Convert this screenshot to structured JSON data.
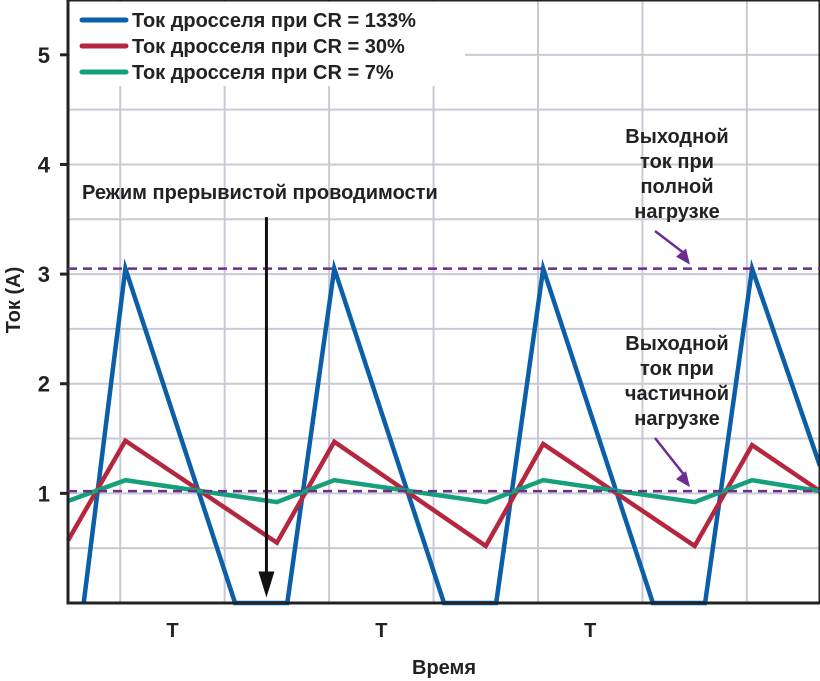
{
  "chart_data": {
    "type": "line",
    "xlabel": "Время",
    "ylabel": "Ток (А)",
    "ylim": [
      0,
      5.5
    ],
    "xlim": [
      0,
      7.2
    ],
    "yticks": [
      1,
      2,
      3,
      4,
      5
    ],
    "xticks": [
      {
        "x": 1.0,
        "label": "T"
      },
      {
        "x": 3.0,
        "label": "T"
      },
      {
        "x": 5.0,
        "label": "T"
      }
    ],
    "grid": true,
    "legend": "top-left",
    "series": [
      {
        "name": "Ток дросселя при CR = 133%",
        "color": "#0a5fa8",
        "x": [
          0.15,
          0.55,
          1.6,
          2.1,
          2.55,
          3.6,
          4.1,
          4.55,
          5.6,
          6.1,
          6.55,
          7.2
        ],
        "y": [
          0,
          3.05,
          0,
          0,
          3.05,
          0,
          0,
          3.05,
          0,
          0,
          3.05,
          1.25
        ]
      },
      {
        "name": "Ток дросселя при CR = 30%",
        "color": "#b5273f",
        "x": [
          0,
          0.55,
          2.0,
          2.55,
          4.0,
          4.55,
          6.0,
          6.55,
          7.2
        ],
        "y": [
          0.57,
          1.48,
          0.55,
          1.47,
          0.52,
          1.45,
          0.52,
          1.44,
          1.02
        ]
      },
      {
        "name": "Ток дросселя при CR = 7%",
        "color": "#15a07a",
        "x": [
          0,
          0.55,
          2.0,
          2.55,
          4.0,
          4.55,
          6.0,
          6.55,
          7.2
        ],
        "y": [
          0.93,
          1.12,
          0.92,
          1.12,
          0.92,
          1.12,
          0.92,
          1.12,
          1.02
        ]
      }
    ],
    "reference_lines": [
      {
        "y": 3.05,
        "label": "Выходной ток при полной нагрузке",
        "color": "#6b2d8f"
      },
      {
        "y": 1.02,
        "label": "Выходной ток при частичной нагрузке",
        "color": "#6b2d8f"
      }
    ],
    "annotations": [
      {
        "text": "Режим прерывистой проводимости",
        "arrow_to": {
          "x": 1.9,
          "y": 0.05
        },
        "arrow_from_y": 3.52
      }
    ]
  }
}
